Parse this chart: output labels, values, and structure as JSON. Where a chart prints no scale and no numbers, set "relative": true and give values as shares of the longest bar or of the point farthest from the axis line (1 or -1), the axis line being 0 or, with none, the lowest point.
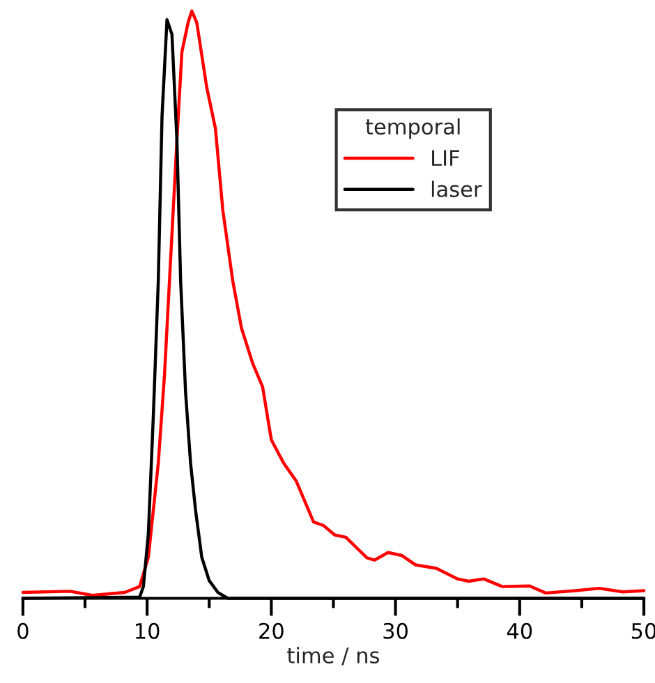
{
  "chart_data": {
    "type": "line",
    "relative": true,
    "xlabel": "time / ns",
    "legend_title": "temporal",
    "legend": "top right",
    "grid": false,
    "marker": "none",
    "line_style": "solid",
    "xlim": [
      0,
      50
    ],
    "xticks": [
      0,
      {
        "value": 5,
        "label": null
      },
      10,
      {
        "value": 15,
        "label": null
      },
      20,
      {
        "value": 25,
        "label": null
      },
      30,
      {
        "value": 35,
        "label": null
      },
      40,
      {
        "value": 45,
        "label": null
      },
      50
    ],
    "tick_labels": "x",
    "series": [
      {
        "name": "LIF",
        "color": "#ff0000",
        "x": [
          0,
          3.8,
          5.6,
          8.2,
          9.4,
          10.1,
          10.9,
          11.4,
          12.0,
          12.4,
          12.8,
          13.3,
          13.6,
          14.0,
          14.8,
          15.5,
          16.1,
          16.9,
          17.6,
          18.5,
          19.3,
          20.0,
          21.0,
          22.0,
          23.4,
          24.2,
          25.1,
          26.0,
          27.7,
          28.3,
          29.4,
          30.5,
          31.6,
          33.3,
          35.0,
          35.9,
          37.1,
          38.6,
          40.8,
          42.1,
          44.5,
          46.4,
          48.3,
          50
        ],
        "values": [
          0.01,
          0.012,
          0.005,
          0.01,
          0.02,
          0.07,
          0.23,
          0.38,
          0.62,
          0.78,
          0.93,
          0.98,
          1.0,
          0.98,
          0.87,
          0.8,
          0.66,
          0.54,
          0.46,
          0.4,
          0.36,
          0.27,
          0.23,
          0.2,
          0.13,
          0.124,
          0.108,
          0.104,
          0.069,
          0.065,
          0.078,
          0.073,
          0.057,
          0.051,
          0.033,
          0.029,
          0.033,
          0.02,
          0.021,
          0.009,
          0.013,
          0.017,
          0.011,
          0.013
        ]
      },
      {
        "name": "laser",
        "color": "#000000",
        "x": [
          0,
          9.4,
          9.7,
          10.1,
          10.5,
          10.9,
          11.2,
          11.6,
          12.0,
          12.4,
          12.7,
          13.1,
          13.5,
          13.9,
          14.4,
          15.0,
          15.7,
          16.5,
          20,
          50
        ],
        "values": [
          0,
          0.002,
          0.02,
          0.11,
          0.31,
          0.54,
          0.82,
          0.985,
          0.96,
          0.78,
          0.54,
          0.35,
          0.23,
          0.15,
          0.07,
          0.03,
          0.01,
          0,
          0,
          0
        ]
      }
    ]
  }
}
